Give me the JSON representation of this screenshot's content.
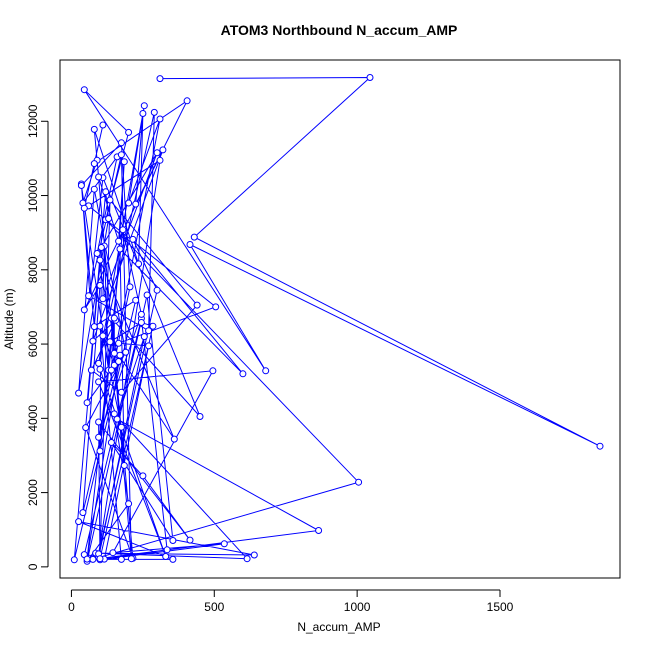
{
  "chart_data": {
    "type": "scatter",
    "title": "ATOM3 Northbound N_accum_AMP",
    "xlabel": "N_accum_AMP",
    "ylabel": "Altitude (m)",
    "xlim": [
      -40,
      1920
    ],
    "ylim": [
      -300,
      13650
    ],
    "xticks": [
      0,
      500,
      1000,
      1500
    ],
    "yticks": [
      0,
      2000,
      4000,
      6000,
      8000,
      10000,
      12000
    ],
    "grid": false,
    "legend": "none",
    "connected": true,
    "color": "#0000ff",
    "series": [
      {
        "x": [
          310,
          1045,
          430,
          1850,
          415,
          680,
          45,
          200,
          120,
          1005,
          95,
          255,
          160,
          865,
          75,
          355,
          25,
          640,
          85,
          615,
          150,
          200,
          55,
          265,
          355,
          140,
          250,
          415,
          95,
          100,
          535,
          145,
          495,
          95,
          330,
          100,
          110,
          175,
          215,
          50,
          190,
          80,
          25,
          130,
          120,
          55,
          150,
          100,
          175,
          45,
          245,
          335,
          115,
          270,
          165,
          505,
          60,
          310,
          95,
          300,
          215,
          600,
          170,
          185,
          140,
          450,
          110,
          65,
          35,
          80,
          225,
          10,
          100,
          360,
          135,
          245,
          285,
          100,
          135,
          440,
          175,
          70,
          155,
          75,
          320,
          45,
          100,
          40,
          170,
          55,
          180,
          245,
          95,
          205,
          175,
          35,
          130,
          115,
          110,
          300,
          105,
          100,
          150,
          150,
          165,
          90,
          160,
          40,
          90,
          210,
          175,
          60,
          270,
          290,
          95,
          255,
          200,
          310,
          140,
          185,
          165,
          95,
          80,
          235,
          250,
          225,
          405,
          80,
          45,
          110
        ],
        "y": [
          13150,
          13180,
          8880,
          3250,
          8680,
          5280,
          12850,
          11700,
          9350,
          2280,
          250,
          6200,
          3980,
          980,
          200,
          200,
          1220,
          320,
          370,
          220,
          4120,
          1700,
          150,
          7320,
          710,
          3350,
          2450,
          720,
          3900,
          190,
          620,
          380,
          5280,
          4980,
          280,
          5320,
          6220,
          3760,
          230,
          3750,
          5780,
          10170,
          4680,
          9380,
          10100,
          4420,
          5430,
          6480,
          200,
          330,
          6690,
          460,
          210,
          5950,
          6020,
          7000,
          9720,
          10950,
          350,
          7450,
          8820,
          5200,
          8560,
          2730,
          6700,
          4050,
          10480,
          7280,
          10310,
          6470,
          7180,
          190,
          8260,
          3440,
          6060,
          6580,
          6480,
          220,
          9880,
          7050,
          4700,
          5300,
          6640,
          6080,
          11230,
          6920,
          7580,
          1460,
          5700,
          210,
          9080,
          6800,
          3490,
          7540,
          11420,
          10270,
          5300,
          8640,
          7220,
          11150,
          8600,
          3120,
          6700,
          5750,
          5530,
          8440,
          11040,
          9800,
          10950,
          220,
          11100,
          7300,
          6360,
          12240,
          5480,
          12420,
          9800,
          12060,
          5300,
          10910,
          8770,
          10500,
          11780,
          8160,
          12210,
          9770,
          12550,
          10860,
          9660,
          11900
        ]
      }
    ]
  }
}
